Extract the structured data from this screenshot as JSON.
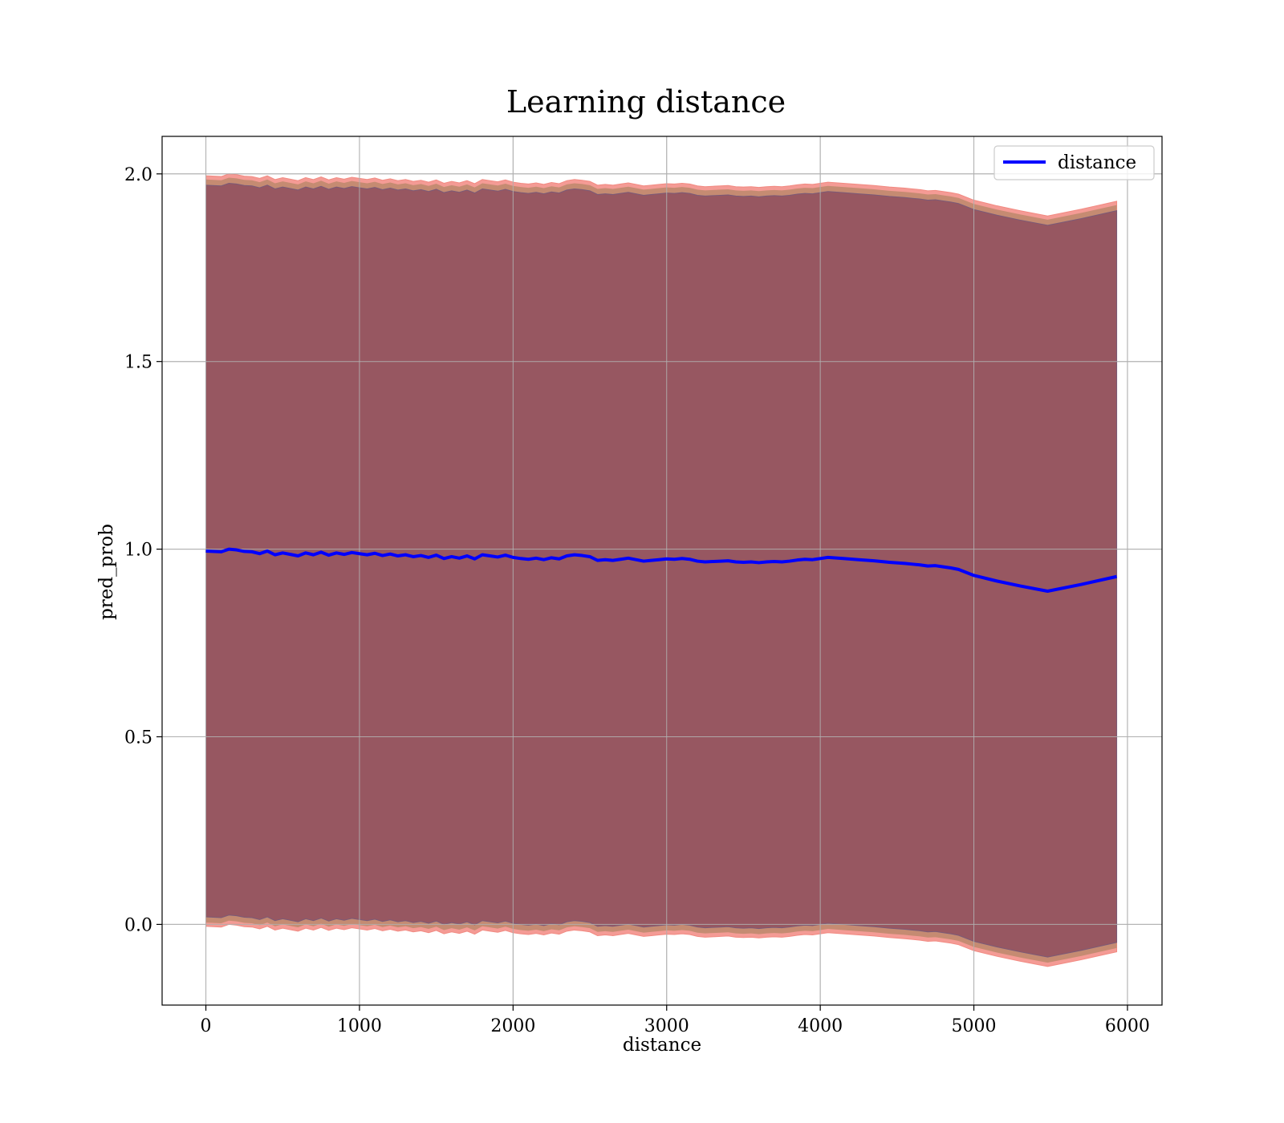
{
  "chart_data": {
    "type": "line",
    "title": "Learning distance",
    "xlabel": "distance",
    "ylabel": "pred_prob",
    "xlim": [
      -285,
      6225
    ],
    "ylim": [
      -0.215,
      2.1
    ],
    "xticks": [
      0,
      1000,
      2000,
      3000,
      4000,
      5000,
      6000
    ],
    "xtick_labels": [
      "0",
      "1000",
      "2000",
      "3000",
      "4000",
      "5000",
      "6000"
    ],
    "yticks": [
      0.0,
      0.5,
      1.0,
      1.5,
      2.0
    ],
    "ytick_labels": [
      "0.0",
      "0.5",
      "1.0",
      "1.5",
      "2.0"
    ],
    "grid": true,
    "legend_position": "top-right",
    "x": [
      0,
      100,
      150,
      200,
      250,
      300,
      350,
      400,
      450,
      500,
      550,
      600,
      650,
      700,
      750,
      800,
      850,
      900,
      950,
      1000,
      1050,
      1100,
      1150,
      1200,
      1250,
      1300,
      1350,
      1400,
      1450,
      1500,
      1550,
      1600,
      1650,
      1700,
      1750,
      1800,
      1850,
      1900,
      1950,
      2000,
      2050,
      2100,
      2150,
      2200,
      2250,
      2300,
      2350,
      2400,
      2450,
      2500,
      2550,
      2600,
      2650,
      2700,
      2750,
      2800,
      2850,
      2900,
      2950,
      3000,
      3050,
      3100,
      3150,
      3200,
      3250,
      3300,
      3350,
      3400,
      3450,
      3500,
      3550,
      3600,
      3650,
      3700,
      3750,
      3800,
      3850,
      3900,
      3950,
      4000,
      4050,
      4150,
      4250,
      4350,
      4450,
      4550,
      4600,
      4650,
      4700,
      4750,
      4800,
      4850,
      4900,
      5000,
      5150,
      5300,
      5480,
      5700,
      5930
    ],
    "series": [
      {
        "name": "distance",
        "color": "#0000ff",
        "y": [
          0.995,
          0.993,
          1.0,
          0.998,
          0.994,
          0.993,
          0.988,
          0.995,
          0.985,
          0.99,
          0.986,
          0.982,
          0.99,
          0.985,
          0.992,
          0.984,
          0.99,
          0.986,
          0.991,
          0.988,
          0.985,
          0.989,
          0.983,
          0.987,
          0.982,
          0.985,
          0.98,
          0.983,
          0.978,
          0.984,
          0.975,
          0.98,
          0.976,
          0.982,
          0.974,
          0.985,
          0.982,
          0.979,
          0.984,
          0.978,
          0.975,
          0.973,
          0.976,
          0.972,
          0.977,
          0.974,
          0.982,
          0.985,
          0.983,
          0.98,
          0.97,
          0.972,
          0.97,
          0.973,
          0.976,
          0.972,
          0.968,
          0.97,
          0.972,
          0.974,
          0.973,
          0.975,
          0.973,
          0.968,
          0.966,
          0.967,
          0.968,
          0.969,
          0.966,
          0.965,
          0.966,
          0.964,
          0.966,
          0.967,
          0.966,
          0.968,
          0.971,
          0.973,
          0.972,
          0.975,
          0.978,
          0.975,
          0.972,
          0.969,
          0.965,
          0.962,
          0.96,
          0.958,
          0.955,
          0.956,
          0.953,
          0.95,
          0.946,
          0.93,
          0.915,
          0.902,
          0.888,
          0.906,
          0.927
        ]
      }
    ],
    "band_color": "#8b4a5c",
    "band_edge_color": "#f28a82"
  }
}
